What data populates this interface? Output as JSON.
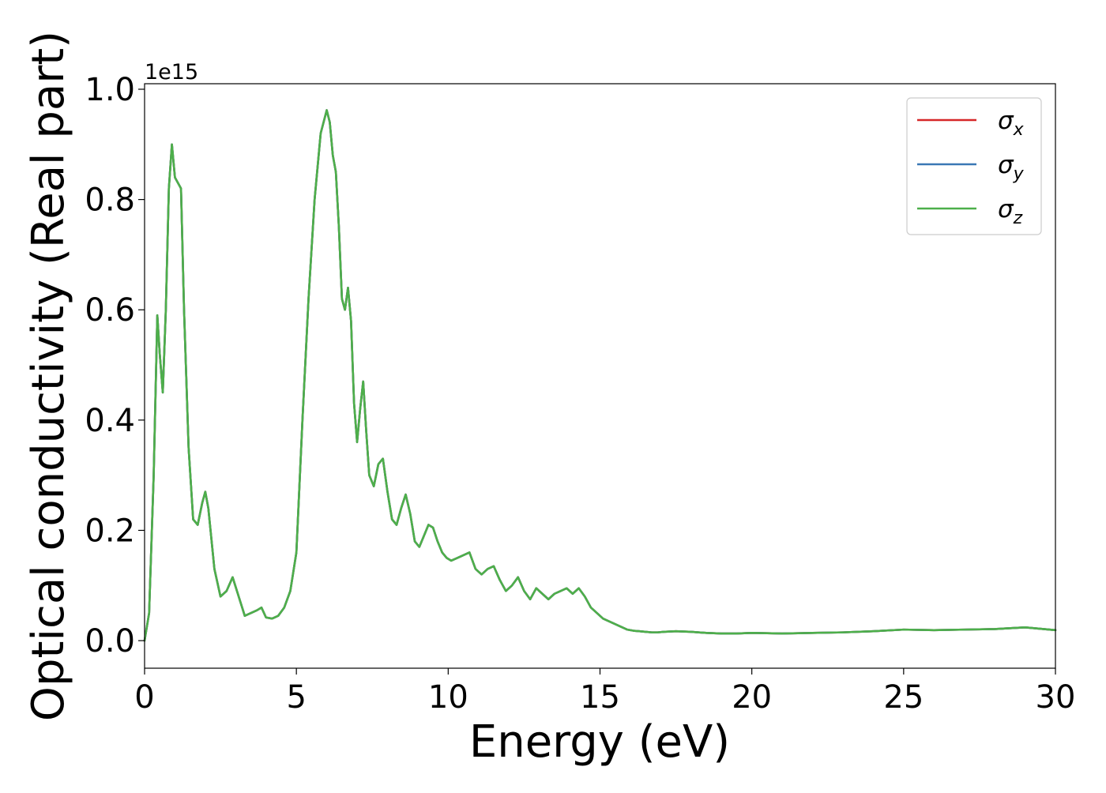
{
  "chart_data": {
    "type": "line",
    "title": "",
    "xlabel": "Energy (eV)",
    "ylabel": "Optical conductivity (Real part)",
    "y_offset_label": "1e15",
    "xlim": [
      0,
      30
    ],
    "ylim": [
      -0.05,
      1.01
    ],
    "x_ticks": [
      0,
      5,
      10,
      15,
      20,
      25,
      30
    ],
    "x_tick_labels": [
      "0",
      "5",
      "10",
      "15",
      "20",
      "25",
      "30"
    ],
    "y_ticks": [
      0.0,
      0.2,
      0.4,
      0.6,
      0.8,
      1.0
    ],
    "y_tick_labels": [
      "0.0",
      "0.2",
      "0.4",
      "0.6",
      "0.8",
      "1.0"
    ],
    "grid": false,
    "legend_position": "top-right",
    "series": [
      {
        "name": "σx",
        "legend_symbol": "σ",
        "legend_subscript": "x",
        "color": "#d62728",
        "x": [
          0,
          0.15,
          0.3,
          0.42,
          0.5,
          0.6,
          0.7,
          0.8,
          0.9,
          1.0,
          1.1,
          1.2,
          1.3,
          1.45,
          1.6,
          1.75,
          1.9,
          2.0,
          2.1,
          2.3,
          2.5,
          2.7,
          2.9,
          3.1,
          3.3,
          3.5,
          3.7,
          3.85,
          4.0,
          4.2,
          4.4,
          4.6,
          4.8,
          5.0,
          5.2,
          5.4,
          5.6,
          5.8,
          6.0,
          6.1,
          6.2,
          6.3,
          6.4,
          6.5,
          6.6,
          6.7,
          6.8,
          6.9,
          7.0,
          7.1,
          7.2,
          7.3,
          7.4,
          7.55,
          7.7,
          7.85,
          8.0,
          8.15,
          8.3,
          8.45,
          8.6,
          8.75,
          8.9,
          9.05,
          9.2,
          9.35,
          9.5,
          9.65,
          9.8,
          9.95,
          10.1,
          10.3,
          10.5,
          10.7,
          10.9,
          11.1,
          11.3,
          11.5,
          11.7,
          11.9,
          12.1,
          12.3,
          12.5,
          12.7,
          12.9,
          13.1,
          13.3,
          13.5,
          13.7,
          13.9,
          14.1,
          14.3,
          14.5,
          14.7,
          14.9,
          15.1,
          15.3,
          15.5,
          15.7,
          15.9,
          16.1,
          16.3,
          16.5,
          16.7,
          16.9,
          17.1,
          17.5,
          18.0,
          18.5,
          19.0,
          19.5,
          20.0,
          21.0,
          22.0,
          23.0,
          24.0,
          25.0,
          26.0,
          27.0,
          28.0,
          29.0,
          30.0
        ],
        "y": [
          0.0,
          0.05,
          0.3,
          0.59,
          0.52,
          0.45,
          0.6,
          0.82,
          0.9,
          0.84,
          0.83,
          0.82,
          0.6,
          0.35,
          0.22,
          0.21,
          0.25,
          0.27,
          0.24,
          0.13,
          0.08,
          0.09,
          0.115,
          0.08,
          0.045,
          0.05,
          0.055,
          0.06,
          0.042,
          0.04,
          0.045,
          0.06,
          0.09,
          0.16,
          0.4,
          0.62,
          0.8,
          0.92,
          0.962,
          0.94,
          0.88,
          0.85,
          0.75,
          0.62,
          0.6,
          0.64,
          0.58,
          0.43,
          0.36,
          0.42,
          0.47,
          0.38,
          0.3,
          0.28,
          0.32,
          0.33,
          0.27,
          0.22,
          0.21,
          0.24,
          0.265,
          0.23,
          0.18,
          0.17,
          0.19,
          0.21,
          0.205,
          0.18,
          0.16,
          0.15,
          0.145,
          0.15,
          0.155,
          0.16,
          0.13,
          0.12,
          0.13,
          0.135,
          0.11,
          0.09,
          0.1,
          0.115,
          0.09,
          0.075,
          0.095,
          0.085,
          0.075,
          0.085,
          0.09,
          0.095,
          0.085,
          0.095,
          0.08,
          0.06,
          0.05,
          0.04,
          0.035,
          0.03,
          0.025,
          0.02,
          0.018,
          0.017,
          0.016,
          0.015,
          0.015,
          0.016,
          0.017,
          0.016,
          0.014,
          0.013,
          0.013,
          0.014,
          0.013,
          0.014,
          0.015,
          0.017,
          0.02,
          0.019,
          0.02,
          0.021,
          0.024,
          0.019
        ]
      },
      {
        "name": "σy",
        "legend_symbol": "σ",
        "legend_subscript": "y",
        "color": "#3a78b5",
        "x": [
          0,
          0.15,
          0.3,
          0.42,
          0.5,
          0.6,
          0.7,
          0.8,
          0.9,
          1.0,
          1.1,
          1.2,
          1.3,
          1.45,
          1.6,
          1.75,
          1.9,
          2.0,
          2.1,
          2.3,
          2.5,
          2.7,
          2.9,
          3.1,
          3.3,
          3.5,
          3.7,
          3.85,
          4.0,
          4.2,
          4.4,
          4.6,
          4.8,
          5.0,
          5.2,
          5.4,
          5.6,
          5.8,
          6.0,
          6.1,
          6.2,
          6.3,
          6.4,
          6.5,
          6.6,
          6.7,
          6.8,
          6.9,
          7.0,
          7.1,
          7.2,
          7.3,
          7.4,
          7.55,
          7.7,
          7.85,
          8.0,
          8.15,
          8.3,
          8.45,
          8.6,
          8.75,
          8.9,
          9.05,
          9.2,
          9.35,
          9.5,
          9.65,
          9.8,
          9.95,
          10.1,
          10.3,
          10.5,
          10.7,
          10.9,
          11.1,
          11.3,
          11.5,
          11.7,
          11.9,
          12.1,
          12.3,
          12.5,
          12.7,
          12.9,
          13.1,
          13.3,
          13.5,
          13.7,
          13.9,
          14.1,
          14.3,
          14.5,
          14.7,
          14.9,
          15.1,
          15.3,
          15.5,
          15.7,
          15.9,
          16.1,
          16.3,
          16.5,
          16.7,
          16.9,
          17.1,
          17.5,
          18.0,
          18.5,
          19.0,
          19.5,
          20.0,
          21.0,
          22.0,
          23.0,
          24.0,
          25.0,
          26.0,
          27.0,
          28.0,
          29.0,
          30.0
        ],
        "y": [
          0.0,
          0.05,
          0.3,
          0.59,
          0.52,
          0.45,
          0.6,
          0.82,
          0.9,
          0.84,
          0.83,
          0.82,
          0.6,
          0.35,
          0.22,
          0.21,
          0.25,
          0.27,
          0.24,
          0.13,
          0.08,
          0.09,
          0.115,
          0.08,
          0.045,
          0.05,
          0.055,
          0.06,
          0.042,
          0.04,
          0.045,
          0.06,
          0.09,
          0.16,
          0.4,
          0.62,
          0.8,
          0.92,
          0.962,
          0.94,
          0.88,
          0.85,
          0.75,
          0.62,
          0.6,
          0.64,
          0.58,
          0.43,
          0.36,
          0.42,
          0.47,
          0.38,
          0.3,
          0.28,
          0.32,
          0.33,
          0.27,
          0.22,
          0.21,
          0.24,
          0.265,
          0.23,
          0.18,
          0.17,
          0.19,
          0.21,
          0.205,
          0.18,
          0.16,
          0.15,
          0.145,
          0.15,
          0.155,
          0.16,
          0.13,
          0.12,
          0.13,
          0.135,
          0.11,
          0.09,
          0.1,
          0.115,
          0.09,
          0.075,
          0.095,
          0.085,
          0.075,
          0.085,
          0.09,
          0.095,
          0.085,
          0.095,
          0.08,
          0.06,
          0.05,
          0.04,
          0.035,
          0.03,
          0.025,
          0.02,
          0.018,
          0.017,
          0.016,
          0.015,
          0.015,
          0.016,
          0.017,
          0.016,
          0.014,
          0.013,
          0.013,
          0.014,
          0.013,
          0.014,
          0.015,
          0.017,
          0.02,
          0.019,
          0.02,
          0.021,
          0.024,
          0.019
        ]
      },
      {
        "name": "σz",
        "legend_symbol": "σ",
        "legend_subscript": "z",
        "color": "#4daf4a",
        "x": [
          0,
          0.15,
          0.3,
          0.42,
          0.5,
          0.6,
          0.7,
          0.8,
          0.9,
          1.0,
          1.1,
          1.2,
          1.3,
          1.45,
          1.6,
          1.75,
          1.9,
          2.0,
          2.1,
          2.3,
          2.5,
          2.7,
          2.9,
          3.1,
          3.3,
          3.5,
          3.7,
          3.85,
          4.0,
          4.2,
          4.4,
          4.6,
          4.8,
          5.0,
          5.2,
          5.4,
          5.6,
          5.8,
          6.0,
          6.1,
          6.2,
          6.3,
          6.4,
          6.5,
          6.6,
          6.7,
          6.8,
          6.9,
          7.0,
          7.1,
          7.2,
          7.3,
          7.4,
          7.55,
          7.7,
          7.85,
          8.0,
          8.15,
          8.3,
          8.45,
          8.6,
          8.75,
          8.9,
          9.05,
          9.2,
          9.35,
          9.5,
          9.65,
          9.8,
          9.95,
          10.1,
          10.3,
          10.5,
          10.7,
          10.9,
          11.1,
          11.3,
          11.5,
          11.7,
          11.9,
          12.1,
          12.3,
          12.5,
          12.7,
          12.9,
          13.1,
          13.3,
          13.5,
          13.7,
          13.9,
          14.1,
          14.3,
          14.5,
          14.7,
          14.9,
          15.1,
          15.3,
          15.5,
          15.7,
          15.9,
          16.1,
          16.3,
          16.5,
          16.7,
          16.9,
          17.1,
          17.5,
          18.0,
          18.5,
          19.0,
          19.5,
          20.0,
          21.0,
          22.0,
          23.0,
          24.0,
          25.0,
          26.0,
          27.0,
          28.0,
          29.0,
          30.0
        ],
        "y": [
          0.0,
          0.05,
          0.3,
          0.59,
          0.52,
          0.45,
          0.6,
          0.82,
          0.9,
          0.84,
          0.83,
          0.82,
          0.6,
          0.35,
          0.22,
          0.21,
          0.25,
          0.27,
          0.24,
          0.13,
          0.08,
          0.09,
          0.115,
          0.08,
          0.045,
          0.05,
          0.055,
          0.06,
          0.042,
          0.04,
          0.045,
          0.06,
          0.09,
          0.16,
          0.4,
          0.62,
          0.8,
          0.92,
          0.962,
          0.94,
          0.88,
          0.85,
          0.75,
          0.62,
          0.6,
          0.64,
          0.58,
          0.43,
          0.36,
          0.42,
          0.47,
          0.38,
          0.3,
          0.28,
          0.32,
          0.33,
          0.27,
          0.22,
          0.21,
          0.24,
          0.265,
          0.23,
          0.18,
          0.17,
          0.19,
          0.21,
          0.205,
          0.18,
          0.16,
          0.15,
          0.145,
          0.15,
          0.155,
          0.16,
          0.13,
          0.12,
          0.13,
          0.135,
          0.11,
          0.09,
          0.1,
          0.115,
          0.09,
          0.075,
          0.095,
          0.085,
          0.075,
          0.085,
          0.09,
          0.095,
          0.085,
          0.095,
          0.08,
          0.06,
          0.05,
          0.04,
          0.035,
          0.03,
          0.025,
          0.02,
          0.018,
          0.017,
          0.016,
          0.015,
          0.015,
          0.016,
          0.017,
          0.016,
          0.014,
          0.013,
          0.013,
          0.014,
          0.013,
          0.014,
          0.015,
          0.017,
          0.02,
          0.019,
          0.02,
          0.021,
          0.024,
          0.019
        ]
      }
    ]
  }
}
